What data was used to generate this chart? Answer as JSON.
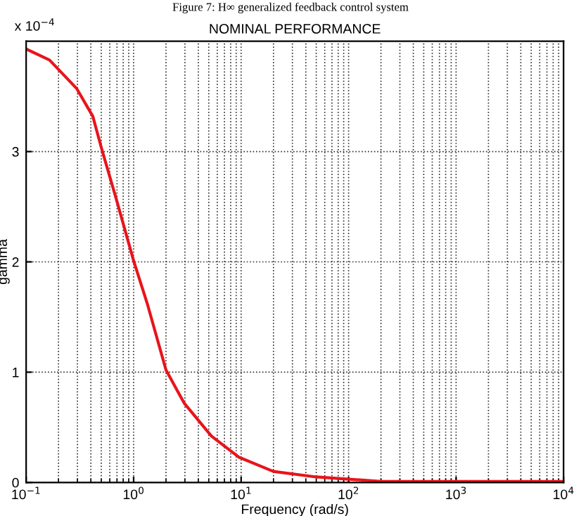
{
  "chart_data": {
    "type": "line",
    "title": "NOMINAL PERFORMANCE",
    "xlabel": "Frequency (rad/s)",
    "ylabel": "gamma",
    "annotations": [
      "Figure 7: H∞ generalized feedback control system",
      "x 10$^{−4}$"
    ],
    "log": "x",
    "grid": true,
    "marker": "none",
    "line_style": "solid",
    "x": [
      0.1,
      0.165,
      0.296,
      0.417,
      0.506,
      0.68,
      1.0,
      1.35,
      2.0,
      2.95,
      5.3,
      9.5,
      20,
      50,
      100,
      200,
      1000,
      10000
    ],
    "series": [
      {
        "color": "#e8141b",
        "values": [
          3.93,
          3.83,
          3.57,
          3.32,
          3.02,
          2.59,
          2.01,
          1.61,
          1.02,
          0.72,
          0.42,
          0.23,
          0.1,
          0.05,
          0.03,
          0.01,
          0.01,
          0.01
        ]
      }
    ],
    "xlim": [
      0.1,
      10000
    ],
    "xticks": [
      {
        "value": 0.1,
        "label": "10$^{−1}$"
      },
      {
        "value": 1,
        "label": "10$^{0}$"
      },
      {
        "value": 10,
        "label": "10$^{1}$"
      },
      {
        "value": 100,
        "label": "10$^{2}$"
      },
      {
        "value": 1000,
        "label": "10$^{3}$"
      },
      {
        "value": 10000,
        "label": "10$^{4}$"
      }
    ],
    "ylim": [
      0,
      4
    ],
    "yticks": [
      0,
      1,
      2,
      3
    ]
  }
}
